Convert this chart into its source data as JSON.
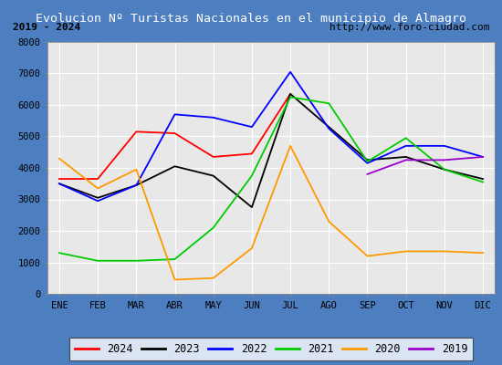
{
  "title": "Evolucion Nº Turistas Nacionales en el municipio de Almagro",
  "subtitle_left": "2019 - 2024",
  "subtitle_right": "http://www.foro-ciudad.com",
  "months": [
    "ENE",
    "FEB",
    "MAR",
    "ABR",
    "MAY",
    "JUN",
    "JUL",
    "AGO",
    "SEP",
    "OCT",
    "NOV",
    "DIC"
  ],
  "ylim": [
    0,
    8000
  ],
  "yticks": [
    0,
    1000,
    2000,
    3000,
    4000,
    5000,
    6000,
    7000,
    8000
  ],
  "series": {
    "2024": {
      "color": "#ff0000",
      "values": [
        3650,
        3650,
        5150,
        5100,
        4350,
        4450,
        6350,
        null,
        null,
        null,
        null,
        null
      ]
    },
    "2023": {
      "color": "#000000",
      "values": [
        3500,
        3050,
        3450,
        4050,
        3750,
        2750,
        6350,
        5300,
        4250,
        4350,
        3950,
        3650
      ]
    },
    "2022": {
      "color": "#0000ff",
      "values": [
        3500,
        2950,
        3450,
        5700,
        5600,
        5300,
        7050,
        5250,
        4150,
        4700,
        4700,
        4350
      ]
    },
    "2021": {
      "color": "#00cc00",
      "values": [
        1300,
        1050,
        1050,
        1100,
        2100,
        3750,
        6250,
        6050,
        4200,
        4950,
        3950,
        3550
      ]
    },
    "2020": {
      "color": "#ff9900",
      "values": [
        4300,
        3350,
        3950,
        450,
        500,
        1450,
        4700,
        2300,
        1200,
        1350,
        1350,
        1300
      ]
    },
    "2019": {
      "color": "#9900cc",
      "values": [
        null,
        null,
        null,
        null,
        null,
        null,
        null,
        null,
        3800,
        4250,
        4250,
        4350
      ]
    }
  },
  "title_bg_color": "#4d7ebf",
  "title_text_color": "#ffffff",
  "plot_bg_color": "#e8e8e8",
  "border_color": "#4d7ebf",
  "grid_color": "#ffffff",
  "legend_years": [
    "2024",
    "2023",
    "2022",
    "2021",
    "2020",
    "2019"
  ]
}
